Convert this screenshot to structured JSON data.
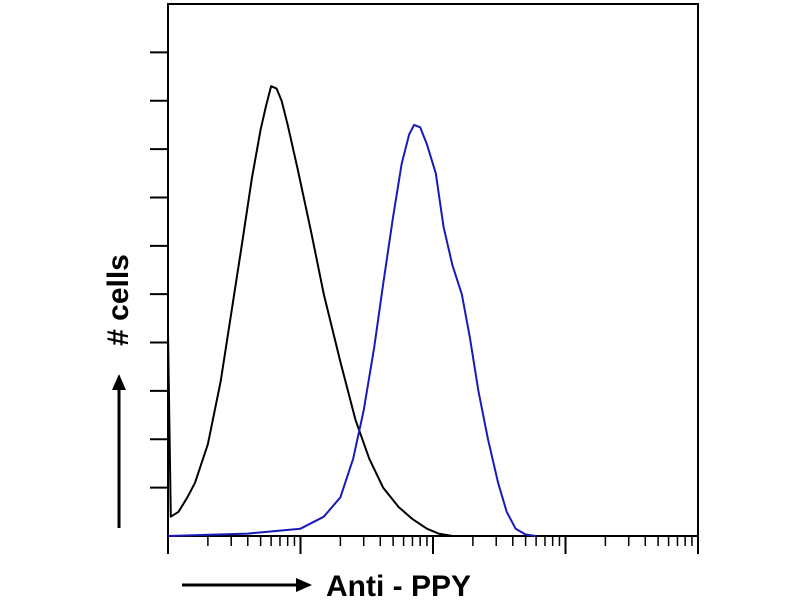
{
  "chart_data": {
    "type": "line",
    "title": "",
    "xlabel": "Anti - PPY",
    "ylabel": "# cells",
    "x_scale": "log",
    "xlim": [
      1,
      10000
    ],
    "ylim": [
      0,
      11
    ],
    "grid": false,
    "legend": "none",
    "series": [
      {
        "color": "#000000",
        "points": [
          [
            1.0,
            4.2
          ],
          [
            1.05,
            0.4
          ],
          [
            1.2,
            0.5
          ],
          [
            1.4,
            0.8
          ],
          [
            1.6,
            1.1
          ],
          [
            2.0,
            1.9
          ],
          [
            2.5,
            3.2
          ],
          [
            3.0,
            4.6
          ],
          [
            3.6,
            6.0
          ],
          [
            4.3,
            7.4
          ],
          [
            5.0,
            8.4
          ],
          [
            5.5,
            8.9
          ],
          [
            6.0,
            9.3
          ],
          [
            6.6,
            9.25
          ],
          [
            7.2,
            9.0
          ],
          [
            8.0,
            8.5
          ],
          [
            9.5,
            7.6
          ],
          [
            12,
            6.3
          ],
          [
            15,
            5.0
          ],
          [
            20,
            3.6
          ],
          [
            26,
            2.4
          ],
          [
            33,
            1.6
          ],
          [
            42,
            1.0
          ],
          [
            55,
            0.6
          ],
          [
            70,
            0.35
          ],
          [
            90,
            0.15
          ],
          [
            110,
            0.05
          ],
          [
            140,
            0
          ]
        ]
      },
      {
        "color": "#1a1ab8",
        "points": [
          [
            1.0,
            0
          ],
          [
            4.0,
            0.05
          ],
          [
            10,
            0.15
          ],
          [
            15,
            0.4
          ],
          [
            20,
            0.8
          ],
          [
            25,
            1.6
          ],
          [
            30,
            2.6
          ],
          [
            36,
            3.9
          ],
          [
            42,
            5.2
          ],
          [
            50,
            6.6
          ],
          [
            58,
            7.7
          ],
          [
            66,
            8.3
          ],
          [
            72,
            8.5
          ],
          [
            80,
            8.45
          ],
          [
            90,
            8.1
          ],
          [
            105,
            7.5
          ],
          [
            120,
            6.4
          ],
          [
            140,
            5.6
          ],
          [
            165,
            5.0
          ],
          [
            190,
            4.1
          ],
          [
            220,
            3.0
          ],
          [
            260,
            2.0
          ],
          [
            310,
            1.1
          ],
          [
            360,
            0.5
          ],
          [
            420,
            0.15
          ],
          [
            500,
            0.03
          ],
          [
            600,
            0
          ]
        ]
      }
    ]
  }
}
